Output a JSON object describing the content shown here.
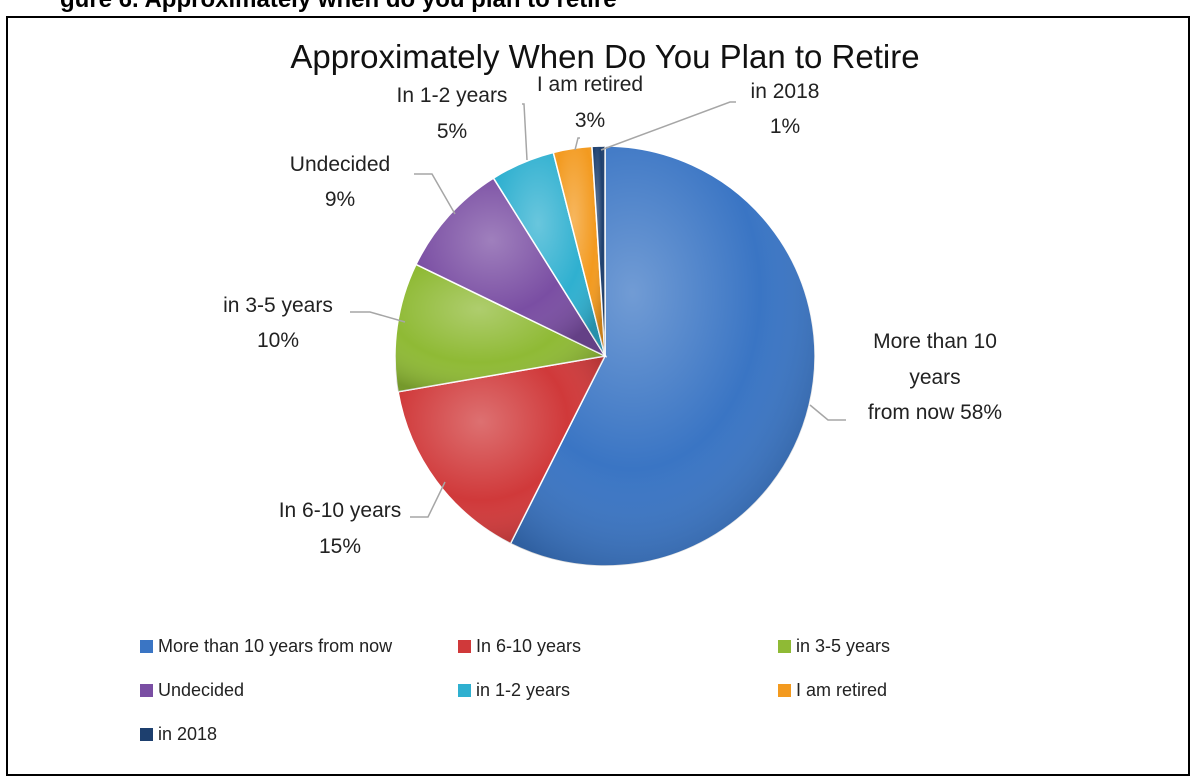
{
  "caption": "gure 6. Approximately when do you plan to retire",
  "chart_data": {
    "type": "pie",
    "title": "Approximately When Do You Plan to Retire",
    "slices": [
      {
        "name": "More than 10 years from now",
        "value": 58,
        "color": "#3a75c4",
        "label_lines": [
          "More than 10",
          "years",
          "from now 58%"
        ]
      },
      {
        "name": "In 6-10 years",
        "value": 15,
        "color": "#d0393a",
        "label_lines": [
          "In 6-10 years",
          "15%"
        ]
      },
      {
        "name": "in 3-5 years",
        "value": 10,
        "color": "#8fba35",
        "label_lines": [
          "in 3-5 years",
          "10%"
        ]
      },
      {
        "name": "Undecided",
        "value": 9,
        "color": "#7a4ea3",
        "label_lines": [
          "Undecided",
          "9%"
        ]
      },
      {
        "name": "in 1-2 years",
        "value": 5,
        "color": "#2fb0d0",
        "label_lines": [
          "In 1-2 years",
          "5%"
        ]
      },
      {
        "name": "I am retired",
        "value": 3,
        "color": "#f39a1f",
        "label_lines": [
          "I am retired",
          "3%"
        ]
      },
      {
        "name": "in 2018",
        "value": 1,
        "color": "#1d3f6e",
        "label_lines": [
          "in 2018",
          "1%"
        ]
      }
    ],
    "legend_position": "bottom"
  }
}
